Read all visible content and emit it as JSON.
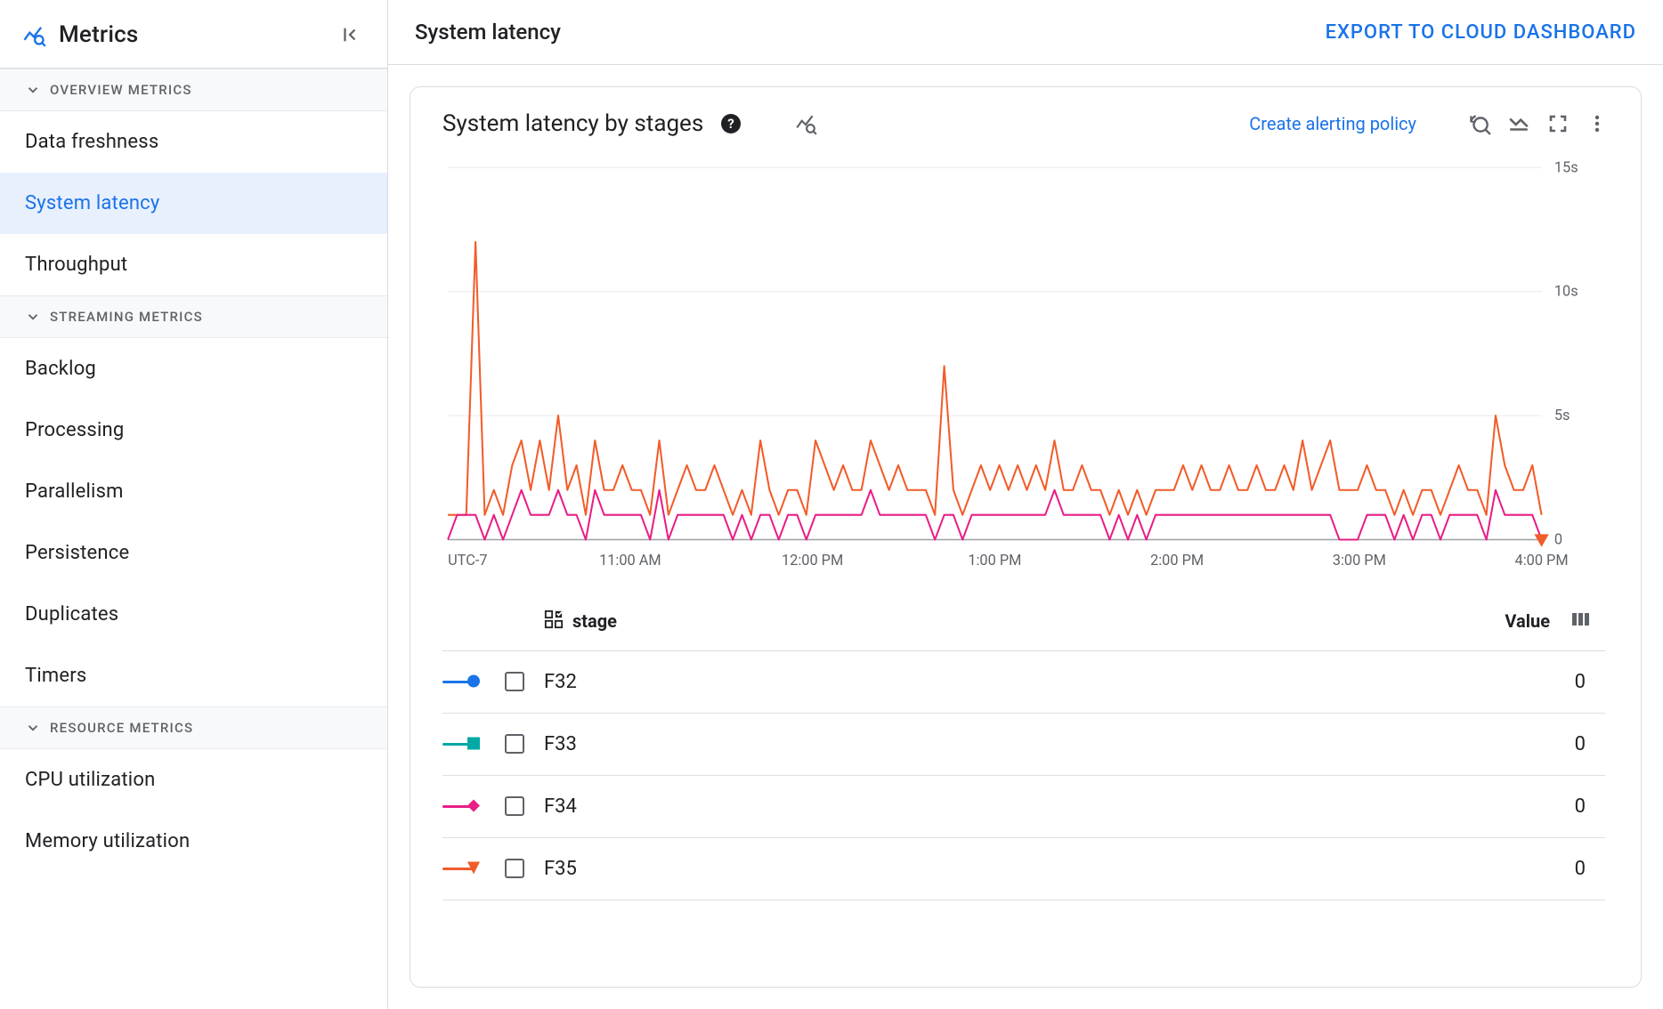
{
  "sidebar": {
    "title": "Metrics",
    "sections": [
      {
        "label": "OVERVIEW METRICS",
        "items": [
          {
            "label": "Data freshness",
            "selected": false
          },
          {
            "label": "System latency",
            "selected": true
          },
          {
            "label": "Throughput",
            "selected": false
          }
        ]
      },
      {
        "label": "STREAMING METRICS",
        "items": [
          {
            "label": "Backlog",
            "selected": false
          },
          {
            "label": "Processing",
            "selected": false
          },
          {
            "label": "Parallelism",
            "selected": false
          },
          {
            "label": "Persistence",
            "selected": false
          },
          {
            "label": "Duplicates",
            "selected": false
          },
          {
            "label": "Timers",
            "selected": false
          }
        ]
      },
      {
        "label": "RESOURCE METRICS",
        "items": [
          {
            "label": "CPU utilization",
            "selected": false
          },
          {
            "label": "Memory utilization",
            "selected": false
          }
        ]
      }
    ]
  },
  "topbar": {
    "page_title": "System latency",
    "export_label": "EXPORT TO CLOUD DASHBOARD"
  },
  "card": {
    "title": "System latency by stages",
    "alert_link": "Create alerting policy"
  },
  "chart": {
    "type": "line",
    "palette": {
      "f32": "#1a73e8",
      "f33": "#00a9a5",
      "f34": "#e91e85",
      "f35": "#f25c2a"
    },
    "background_color": "#ffffff",
    "grid_color": "#e0e0e0",
    "axis_color": "#5f6368",
    "line_width": 2,
    "y": {
      "min": 0,
      "max": 15,
      "ticks": [
        0,
        5,
        10,
        15
      ],
      "tick_labels": [
        "0",
        "5s",
        "10s",
        "15s"
      ]
    },
    "x": {
      "timezone_label": "UTC-7",
      "ticks": [
        0,
        60,
        120,
        180,
        240,
        300,
        360
      ],
      "tick_labels": [
        "UTC-7",
        "11:00 AM",
        "12:00 PM",
        "1:00 PM",
        "2:00 PM",
        "3:00 PM",
        "4:00 PM"
      ]
    },
    "series": [
      {
        "id": "F35",
        "color": "#f25c2a",
        "marker": "triangle",
        "values": [
          1,
          1,
          1,
          12,
          1,
          2,
          1,
          3,
          4,
          2,
          4,
          2,
          5,
          2,
          3,
          1,
          4,
          2,
          2,
          3,
          2,
          2,
          1,
          4,
          1,
          2,
          3,
          2,
          2,
          3,
          2,
          1,
          2,
          1,
          4,
          2,
          1,
          2,
          2,
          1,
          4,
          3,
          2,
          3,
          2,
          2,
          4,
          3,
          2,
          3,
          2,
          2,
          2,
          1,
          7,
          2,
          1,
          2,
          3,
          2,
          3,
          2,
          3,
          2,
          3,
          2,
          4,
          2,
          2,
          3,
          2,
          2,
          1,
          2,
          1,
          2,
          1,
          2,
          2,
          2,
          3,
          2,
          3,
          2,
          2,
          3,
          2,
          2,
          3,
          2,
          2,
          3,
          2,
          4,
          2,
          3,
          4,
          2,
          2,
          2,
          3,
          2,
          2,
          1,
          2,
          1,
          2,
          2,
          1,
          2,
          3,
          2,
          2,
          1,
          5,
          3,
          2,
          2,
          3,
          1
        ]
      },
      {
        "id": "F34",
        "color": "#e91e85",
        "marker": "diamond",
        "values": [
          0,
          1,
          1,
          1,
          0,
          1,
          0,
          1,
          2,
          1,
          1,
          1,
          2,
          1,
          1,
          0,
          2,
          1,
          1,
          1,
          1,
          1,
          0,
          2,
          0,
          1,
          1,
          1,
          1,
          1,
          1,
          0,
          1,
          0,
          1,
          1,
          0,
          1,
          1,
          0,
          1,
          1,
          1,
          1,
          1,
          1,
          2,
          1,
          1,
          1,
          1,
          1,
          1,
          0,
          1,
          1,
          0,
          1,
          1,
          1,
          1,
          1,
          1,
          1,
          1,
          1,
          2,
          1,
          1,
          1,
          1,
          1,
          0,
          1,
          0,
          1,
          0,
          1,
          1,
          1,
          1,
          1,
          1,
          1,
          1,
          1,
          1,
          1,
          1,
          1,
          1,
          1,
          1,
          1,
          1,
          1,
          1,
          0,
          0,
          0,
          1,
          1,
          1,
          0,
          1,
          0,
          1,
          1,
          0,
          1,
          1,
          1,
          1,
          0,
          2,
          1,
          1,
          1,
          1,
          0
        ]
      }
    ],
    "end_marker": {
      "id": "F35",
      "color": "#f25c2a",
      "shape": "triangle",
      "at_x": 360
    }
  },
  "legend": {
    "stage_header": "stage",
    "value_header": "Value",
    "rows": [
      {
        "stage": "F32",
        "value": "0",
        "color": "#1a73e8",
        "marker": "circle"
      },
      {
        "stage": "F33",
        "value": "0",
        "color": "#00a9a5",
        "marker": "square"
      },
      {
        "stage": "F34",
        "value": "0",
        "color": "#e91e85",
        "marker": "diamond"
      },
      {
        "stage": "F35",
        "value": "0",
        "color": "#f25c2a",
        "marker": "triangle"
      }
    ]
  }
}
